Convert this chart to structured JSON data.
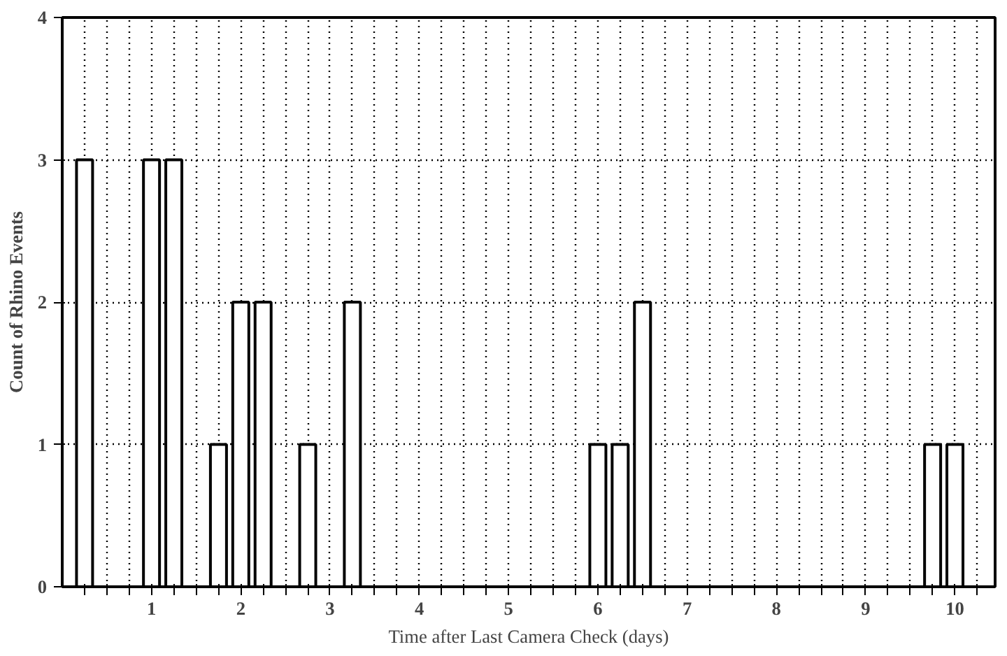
{
  "chart_data": {
    "type": "bar",
    "xlabel": "Time after Last Camera Check (days)",
    "ylabel": "Count of Rhino Events",
    "x": [
      0.25,
      0.5,
      0.75,
      1.0,
      1.25,
      1.5,
      1.75,
      2.0,
      2.25,
      2.5,
      2.75,
      3.0,
      3.25,
      3.5,
      3.75,
      4.0,
      4.25,
      4.5,
      4.75,
      5.0,
      5.25,
      5.5,
      5.75,
      6.0,
      6.25,
      6.5,
      6.75,
      7.0,
      7.25,
      7.5,
      7.75,
      8.0,
      8.25,
      8.5,
      8.75,
      9.0,
      9.25,
      9.5,
      9.75,
      10.0,
      10.25
    ],
    "values": [
      3,
      0,
      0,
      3,
      3,
      0,
      1,
      2,
      2,
      0,
      1,
      0,
      2,
      0,
      0,
      0,
      0,
      0,
      0,
      0,
      0,
      0,
      0,
      1,
      1,
      2,
      0,
      0,
      0,
      0,
      0,
      0,
      0,
      0,
      0,
      0,
      0,
      0,
      1,
      1,
      0
    ],
    "color": "#ffffff",
    "xlim": [
      0,
      10.45
    ],
    "ylim": [
      0,
      4
    ],
    "yticks": [
      0,
      1,
      2,
      3,
      4
    ],
    "xticks": [
      {
        "value": 0.25,
        "label": null
      },
      {
        "value": 0.5,
        "label": null
      },
      {
        "value": 0.75,
        "label": null
      },
      1,
      {
        "value": 1.25,
        "label": null
      },
      {
        "value": 1.5,
        "label": null
      },
      {
        "value": 1.75,
        "label": null
      },
      2,
      {
        "value": 2.25,
        "label": null
      },
      {
        "value": 2.5,
        "label": null
      },
      {
        "value": 2.75,
        "label": null
      },
      3,
      {
        "value": 3.25,
        "label": null
      },
      {
        "value": 3.5,
        "label": null
      },
      {
        "value": 3.75,
        "label": null
      },
      4,
      {
        "value": 4.25,
        "label": null
      },
      {
        "value": 4.5,
        "label": null
      },
      {
        "value": 4.75,
        "label": null
      },
      5,
      {
        "value": 5.25,
        "label": null
      },
      {
        "value": 5.5,
        "label": null
      },
      {
        "value": 5.75,
        "label": null
      },
      6,
      {
        "value": 6.25,
        "label": null
      },
      {
        "value": 6.5,
        "label": null
      },
      {
        "value": 6.75,
        "label": null
      },
      7,
      {
        "value": 7.25,
        "label": null
      },
      {
        "value": 7.5,
        "label": null
      },
      {
        "value": 7.75,
        "label": null
      },
      8,
      {
        "value": 8.25,
        "label": null
      },
      {
        "value": 8.5,
        "label": null
      },
      {
        "value": 8.75,
        "label": null
      },
      9,
      {
        "value": 9.25,
        "label": null
      },
      {
        "value": 9.5,
        "label": null
      },
      {
        "value": 9.75,
        "label": null
      },
      10,
      {
        "value": 10.25,
        "label": null
      }
    ],
    "grid": true
  }
}
